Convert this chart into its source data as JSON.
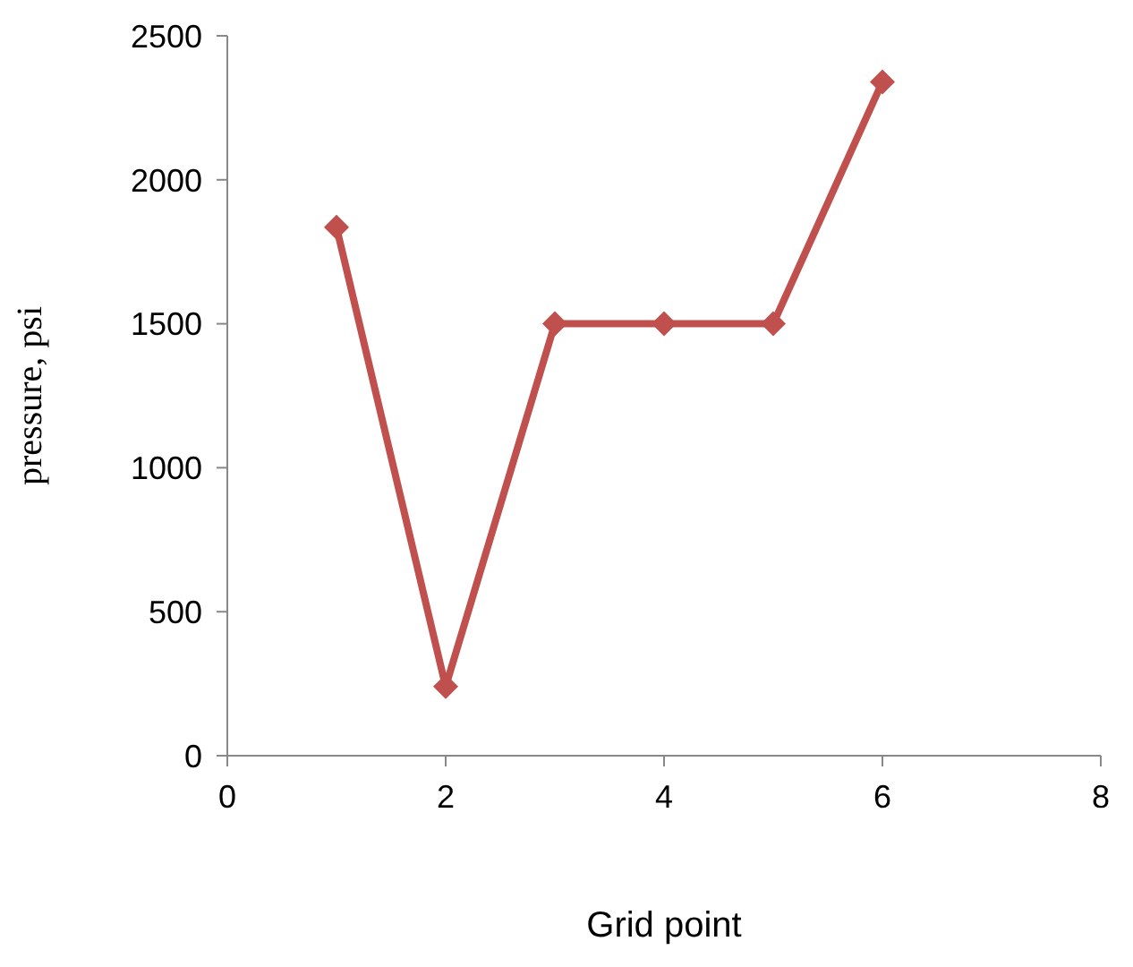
{
  "chart_data": {
    "type": "line",
    "xlabel": "Grid point",
    "ylabel": "pressure, psi",
    "x": [
      1,
      2,
      3,
      4,
      5,
      6
    ],
    "series": [
      {
        "color": "#c0504d",
        "values": [
          1835,
          240,
          1500,
          1500,
          1500,
          2340
        ]
      }
    ],
    "xlim": [
      0,
      8
    ],
    "xticks": [
      0,
      2,
      4,
      6,
      8
    ],
    "ylim": [
      0,
      2500
    ],
    "yticks": [
      0,
      500,
      1000,
      1500,
      2000,
      2500
    ],
    "marker": "diamond",
    "line_style": "solid"
  }
}
